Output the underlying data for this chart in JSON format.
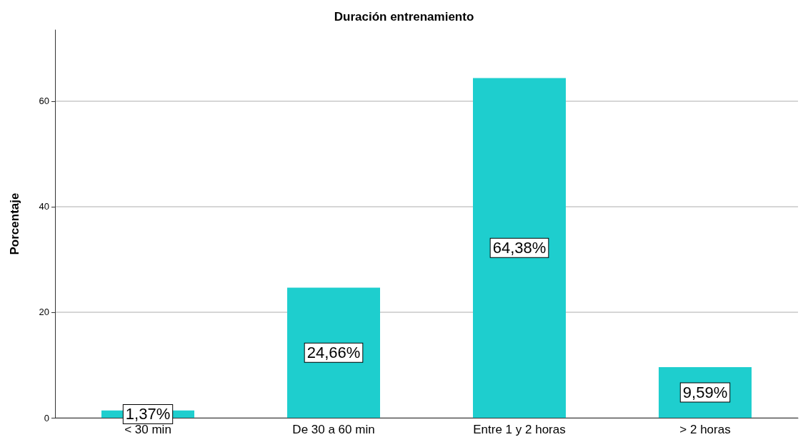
{
  "chart_data": {
    "type": "bar",
    "title": "Duración entrenamiento",
    "ylabel": "Porcentaje",
    "categories": [
      "< 30 min",
      "De 30 a 60 min",
      "Entre 1 y 2 horas",
      "> 2 horas"
    ],
    "values": [
      1.37,
      24.66,
      64.38,
      9.59
    ],
    "value_labels": [
      "1,37%",
      "24,66%",
      "64,38%",
      "9,59%"
    ],
    "color": "#1ecece",
    "ylim": [
      0,
      73.5
    ],
    "yticks": [
      0,
      20,
      40,
      60
    ],
    "grid": "y"
  }
}
